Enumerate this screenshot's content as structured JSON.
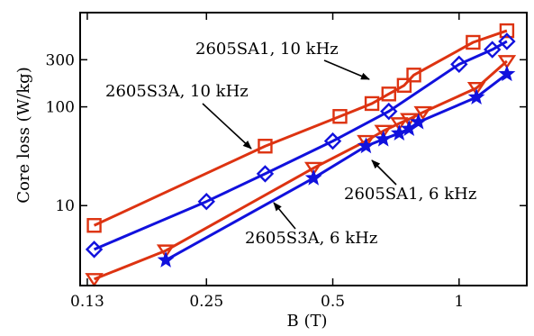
{
  "chart_data": {
    "type": "line",
    "xlabel": "B (T)",
    "ylabel": "Core loss (W/kg)",
    "x_scale": "log",
    "y_scale": "log",
    "xlim": [
      0.125,
      1.45
    ],
    "ylim": [
      1.55,
      900
    ],
    "x_ticks": [
      {
        "value": 0.13,
        "label": "0.13"
      },
      {
        "value": 0.25,
        "label": "0.25"
      },
      {
        "value": 0.5,
        "label": "0.5"
      },
      {
        "value": 1,
        "label": "1"
      }
    ],
    "y_ticks": [
      {
        "value": 10,
        "label": "10"
      },
      {
        "value": 100,
        "label": "100"
      },
      {
        "value": 300,
        "label": "300"
      }
    ],
    "grid": false,
    "series": [
      {
        "name": "2605SA1, 10 kHz",
        "color": "#dd3311",
        "marker": "square",
        "x": [
          0.135,
          0.345,
          0.52,
          0.62,
          0.68,
          0.74,
          0.78,
          1.08,
          1.3
        ],
        "y": [
          6.3,
          40,
          80,
          108,
          135,
          165,
          210,
          450,
          590
        ]
      },
      {
        "name": "2605S3A, 10 kHz",
        "color": "#1111dd",
        "marker": "diamond",
        "x": [
          0.135,
          0.25,
          0.345,
          0.5,
          0.68,
          1.0,
          1.2,
          1.3
        ],
        "y": [
          3.6,
          11,
          21,
          45,
          90,
          270,
          380,
          460
        ]
      },
      {
        "name": "2605SA1, 6 kHz",
        "color": "#dd3311",
        "marker": "triangle-down",
        "x": [
          0.135,
          0.2,
          0.45,
          0.6,
          0.66,
          0.72,
          0.76,
          0.82,
          1.1,
          1.3
        ],
        "y": [
          1.8,
          3.5,
          24,
          45,
          57,
          68,
          75,
          88,
          155,
          290
        ]
      },
      {
        "name": "2605S3A, 6 kHz",
        "color": "#1111dd",
        "marker": "star",
        "x": [
          0.2,
          0.45,
          0.6,
          0.66,
          0.72,
          0.76,
          0.8,
          1.1,
          1.3
        ],
        "y": [
          2.8,
          19,
          40,
          47,
          54,
          60,
          70,
          125,
          215
        ]
      }
    ],
    "annotations": [
      {
        "text": "2605SA1, 10 kHz",
        "series": 0,
        "x": 0.6,
        "y": 105
      },
      {
        "text": "2605S3A, 10 kHz",
        "series": 1,
        "x": 0.34,
        "y": 20
      },
      {
        "text": "2605SA1, 6 kHz",
        "series": 2,
        "x": 0.6,
        "y": 43
      },
      {
        "text": "2605S3A, 6 kHz",
        "series": 3,
        "x": 0.45,
        "y": 15
      }
    ]
  }
}
